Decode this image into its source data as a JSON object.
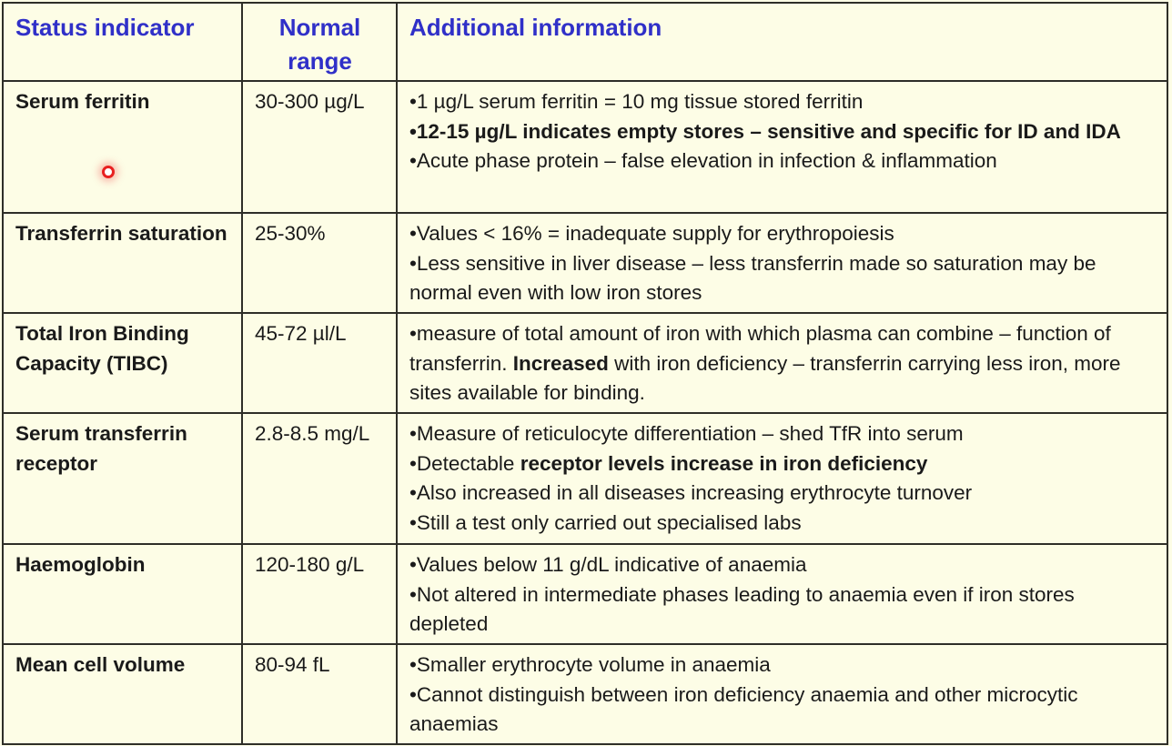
{
  "headers": [
    "Status indicator",
    "Normal range",
    "Additional information"
  ],
  "rows": [
    {
      "indicator": "Serum ferritin",
      "range": "30-300 µg/L",
      "info": [
        [
          {
            "t": "•1 µg/L serum ferritin = 10 mg tissue stored ferritin"
          }
        ],
        [
          {
            "t": "•12-15 µg/L indicates empty stores – sensitive and specific for ID and IDA",
            "b": true
          }
        ],
        [
          {
            "t": "•Acute phase protein – false elevation in infection & inflammation"
          }
        ]
      ]
    },
    {
      "indicator": "Transferrin saturation",
      "range": "25-30%",
      "info": [
        [
          {
            "t": "•Values < 16% = inadequate supply for erythropoiesis"
          }
        ],
        [
          {
            "t": "•Less sensitive in liver disease – less transferrin made so saturation may be normal even with low iron stores"
          }
        ]
      ]
    },
    {
      "indicator": "Total Iron Binding Capacity (TIBC)",
      "range": "45-72 µl/L",
      "info": [
        [
          {
            "t": "•measure of total amount of iron with which plasma can combine – function of transferrin. "
          },
          {
            "t": "Increased",
            "b": true
          },
          {
            "t": " with iron deficiency – transferrin carrying less iron, more sites available for binding."
          }
        ]
      ]
    },
    {
      "indicator": "Serum transferrin receptor",
      "range": "2.8-8.5 mg/L",
      "info": [
        [
          {
            "t": "•Measure of reticulocyte differentiation – shed TfR into serum"
          }
        ],
        [
          {
            "t": "•Detectable "
          },
          {
            "t": "receptor levels increase in iron deficiency",
            "b": true
          }
        ],
        [
          {
            "t": "•Also increased in all diseases increasing erythrocyte turnover"
          }
        ],
        [
          {
            "t": "•Still a test only carried out specialised labs"
          }
        ]
      ]
    },
    {
      "indicator": "Haemoglobin",
      "range": "120-180 g/L",
      "info": [
        [
          {
            "t": "•Values below 11 g/dL indicative of anaemia"
          }
        ],
        [
          {
            "t": "•Not altered in intermediate phases leading to anaemia even if iron stores depleted"
          }
        ]
      ]
    },
    {
      "indicator": "Mean cell volume",
      "range": "80-94 fL",
      "info": [
        [
          {
            "t": "•Smaller erythrocyte volume in anaemia"
          }
        ],
        [
          {
            "t": "•Cannot distinguish between iron deficiency anaemia and other microcytic anaemias"
          }
        ]
      ]
    }
  ],
  "colors": {
    "header_text": "#3030c8",
    "background": "#fdfde6",
    "border": "#2e2e28",
    "cursor": "#e82020"
  }
}
